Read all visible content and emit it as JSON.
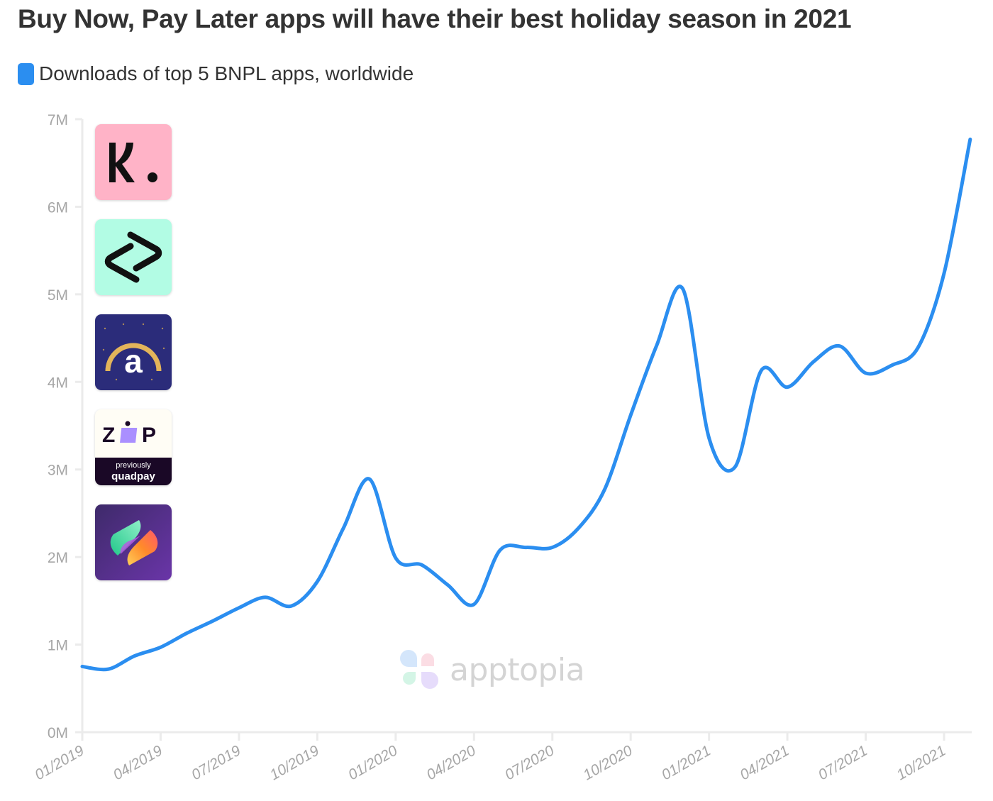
{
  "title": "Buy Now, Pay Later apps will have their best holiday season in 2021",
  "legend": {
    "label": "Downloads of top 5 BNPL apps, worldwide",
    "color": "#2b8ef0"
  },
  "watermark": {
    "text": "apptopia"
  },
  "app_icons": [
    {
      "name": "klarna",
      "glyph": "K.",
      "bg": "#ffb3c7"
    },
    {
      "name": "afterpay",
      "glyph": "afterpay-arrows",
      "bg": "#b2fce4"
    },
    {
      "name": "affirm",
      "glyph": "a",
      "bg": "#2b2c7a"
    },
    {
      "name": "zip",
      "glyph": "ZIP",
      "sub1": "previously",
      "sub2": "quadpay",
      "bg": "#fffdf5"
    },
    {
      "name": "sezzle",
      "glyph": "S",
      "bg": "#4a2a7a"
    }
  ],
  "chart_data": {
    "type": "line",
    "title": "Buy Now, Pay Later apps will have their best holiday season in 2021",
    "xlabel": "",
    "ylabel": "",
    "ylim": [
      0,
      7
    ],
    "y_unit": "M",
    "yticks": [
      "0M",
      "1M",
      "2M",
      "3M",
      "4M",
      "5M",
      "6M",
      "7M"
    ],
    "xticks": [
      "01/2019",
      "04/2019",
      "07/2019",
      "10/2019",
      "01/2020",
      "04/2020",
      "07/2020",
      "10/2020",
      "01/2021",
      "04/2021",
      "07/2021",
      "10/2021"
    ],
    "grid": false,
    "legend_position": "top-left",
    "series": [
      {
        "name": "Downloads of top 5 BNPL apps, worldwide",
        "color": "#2b8ef0",
        "x": [
          "01/2019",
          "02/2019",
          "03/2019",
          "04/2019",
          "05/2019",
          "06/2019",
          "07/2019",
          "08/2019",
          "09/2019",
          "10/2019",
          "11/2019",
          "12/2019",
          "01/2020",
          "02/2020",
          "03/2020",
          "04/2020",
          "05/2020",
          "06/2020",
          "07/2020",
          "08/2020",
          "09/2020",
          "10/2020",
          "11/2020",
          "12/2020",
          "01/2021",
          "02/2021",
          "03/2021",
          "04/2021",
          "05/2021",
          "06/2021",
          "07/2021",
          "08/2021",
          "09/2021",
          "10/2021",
          "11/2021"
        ],
        "values": [
          0.75,
          0.72,
          0.87,
          0.97,
          1.13,
          1.27,
          1.42,
          1.54,
          1.44,
          1.72,
          2.33,
          2.89,
          1.99,
          1.91,
          1.68,
          1.46,
          2.08,
          2.11,
          2.11,
          2.33,
          2.77,
          3.62,
          4.42,
          5.06,
          3.36,
          3.03,
          4.13,
          3.94,
          4.23,
          4.41,
          4.1,
          4.19,
          4.39,
          5.24,
          6.77
        ]
      }
    ]
  }
}
